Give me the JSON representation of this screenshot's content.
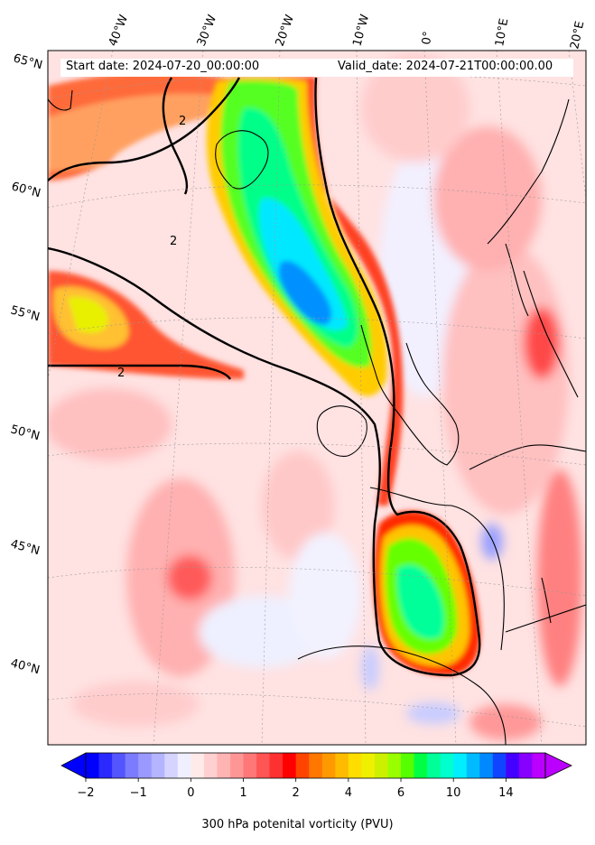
{
  "header": {
    "start_label": "Start date: 2024-07-20_00:00:00",
    "valid_label": "Valid_date: 2024-07-21T00:00:00.00"
  },
  "map": {
    "region": "North Atlantic and Western Europe",
    "projection": "polar stereographic (oblique)",
    "longitude_labels": [
      "40°W",
      "30°W",
      "20°W",
      "10°W",
      "0°",
      "10°E",
      "20°E"
    ],
    "latitude_labels": [
      "65°N",
      "60°N",
      "55°N",
      "50°N",
      "45°N",
      "40°N"
    ],
    "contour_label": "2",
    "contour_level_pvu": 2,
    "coastlines": true,
    "gridlines": "dotted"
  },
  "colorbar": {
    "title": "300 hPa potenital vorticity (PVU)",
    "tick_labels": [
      "−2",
      "−1",
      "0",
      "1",
      "2",
      "4",
      "6",
      "10",
      "14"
    ],
    "levels": [
      -2,
      -1.75,
      -1.5,
      -1.25,
      -1,
      -0.75,
      -0.5,
      -0.25,
      0,
      0.25,
      0.5,
      0.75,
      1,
      1.25,
      1.5,
      1.75,
      2,
      2.5,
      3,
      3.5,
      4,
      4.5,
      5,
      5.5,
      6,
      7,
      8,
      9,
      10,
      11,
      12,
      13,
      14,
      15
    ],
    "colors": [
      "#0000ff",
      "#2a2aff",
      "#5555ff",
      "#7b7bff",
      "#9999ff",
      "#b4b4ff",
      "#d4d4ff",
      "#efefff",
      "#ffeaea",
      "#ffd0d0",
      "#ffb4b4",
      "#ff9696",
      "#ff7777",
      "#ff5555",
      "#ff3030",
      "#ff0000",
      "#ff4400",
      "#ff7700",
      "#ff9900",
      "#ffbb00",
      "#ffdd00",
      "#eef000",
      "#ccf000",
      "#99ff00",
      "#55ff00",
      "#00ff44",
      "#00ff99",
      "#00ffcc",
      "#00eeff",
      "#00bbff",
      "#0088ff",
      "#1144ff",
      "#4400ff",
      "#8800ff",
      "#bb00ff"
    ],
    "extend": "both"
  }
}
